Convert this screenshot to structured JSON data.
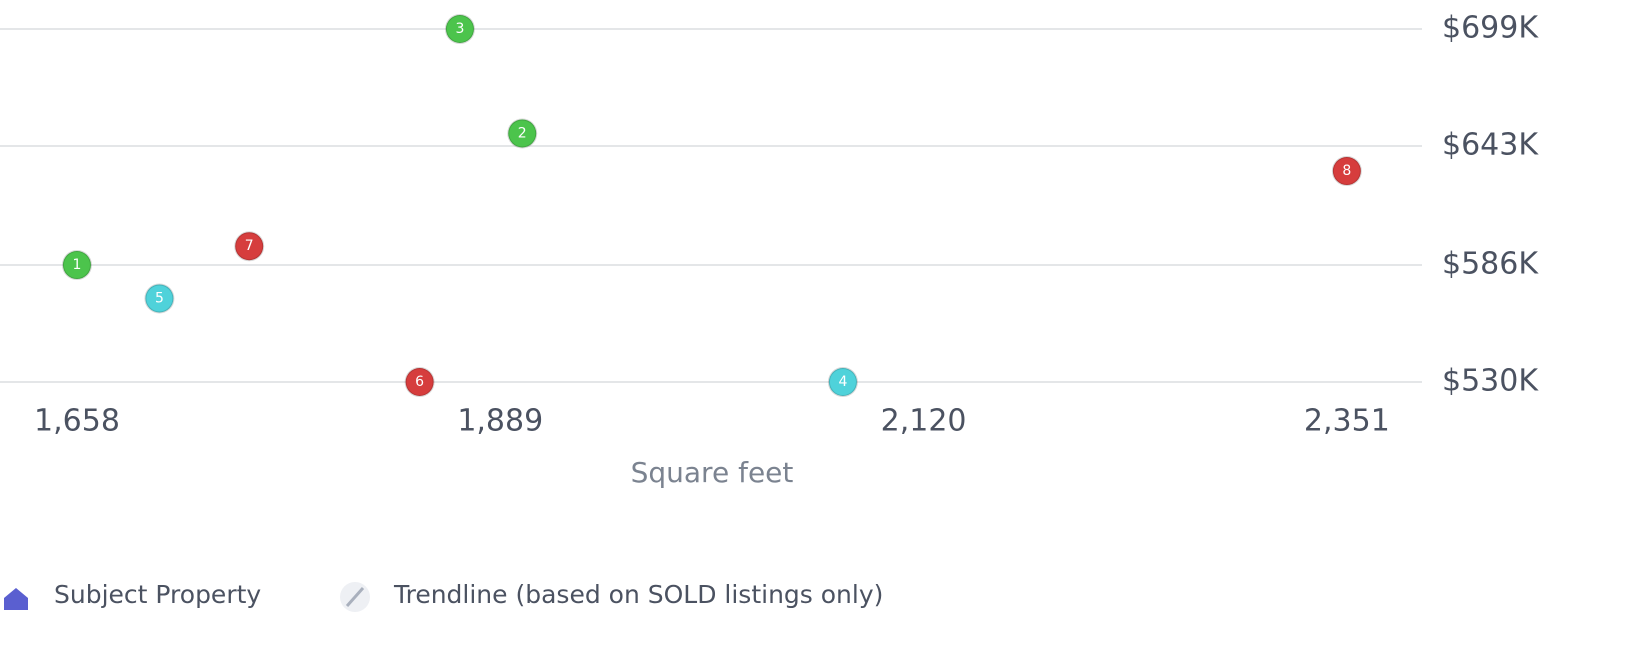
{
  "chart_data": {
    "type": "scatter",
    "x_label": "Square feet",
    "x": [
      1658,
      1901,
      1867,
      2076,
      1703,
      1845,
      1752,
      2351
    ],
    "values": [
      586000,
      649000,
      699000,
      530000,
      570000,
      530000,
      595000,
      631000
    ],
    "point_labels": [
      "1",
      "2",
      "3",
      "4",
      "5",
      "6",
      "7",
      "8"
    ],
    "colors": [
      "#4cc44c",
      "#4cc44c",
      "#4cc44c",
      "#4fd2da",
      "#4fd2da",
      "#d63d3d",
      "#d63d3d",
      "#d63d3d"
    ],
    "xlim": [
      1616,
      2392
    ],
    "xticks": [
      {
        "value": 1658,
        "label": "1,658"
      },
      {
        "value": 1889,
        "label": "1,889"
      },
      {
        "value": 2120,
        "label": "2,120"
      },
      {
        "value": 2351,
        "label": "2,351"
      }
    ],
    "ylim": [
      530000,
      699000
    ],
    "yticks": [
      {
        "value": 530000,
        "label": "$530K"
      },
      {
        "value": 586000,
        "label": "$586K"
      },
      {
        "value": 643000,
        "label": "$643K"
      },
      {
        "value": 699000,
        "label": "$699K"
      }
    ],
    "grid": true,
    "legend": [
      "Subject Property",
      "Trendline (based on SOLD listings only)"
    ]
  }
}
